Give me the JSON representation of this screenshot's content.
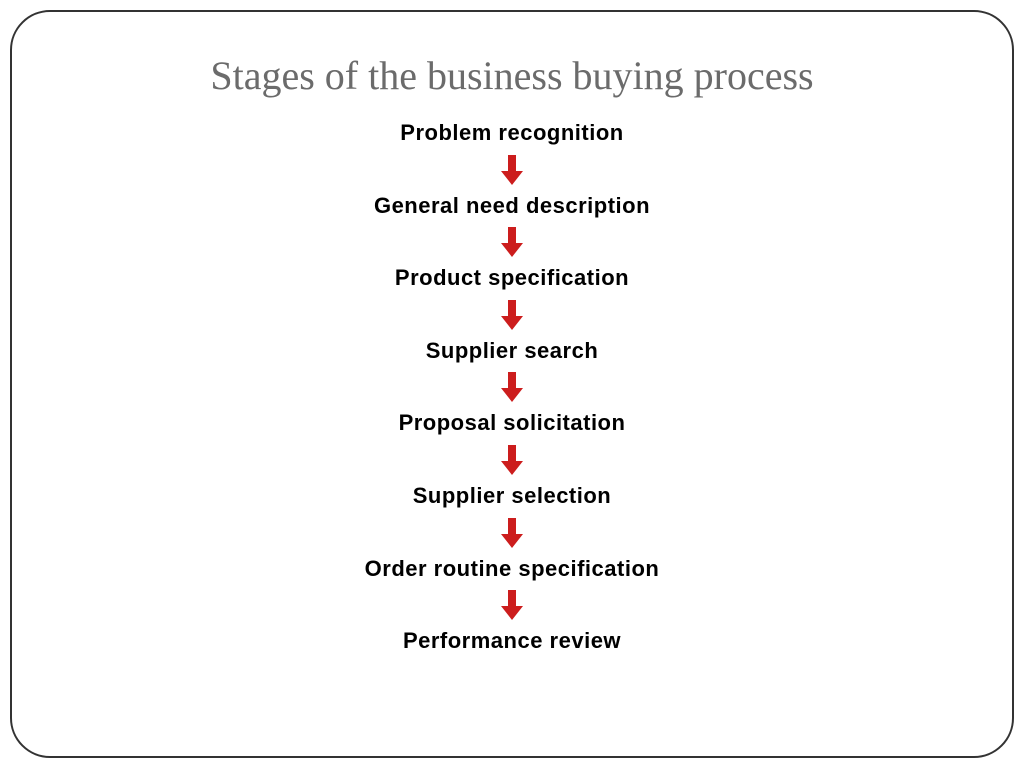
{
  "title": {
    "text": "Stages of the business buying process",
    "color": "#6b6b6b",
    "fontsize": 40
  },
  "flowchart": {
    "type": "flowchart",
    "direction": "vertical",
    "stage_text_color": "#000000",
    "stage_fontsize": 22,
    "stage_fontweight": "bold",
    "arrow_color": "#cc1d1d",
    "arrow_shaft_width": 8,
    "arrow_head_width": 22,
    "arrow_total_height": 30,
    "background_color": "#ffffff",
    "stages": [
      "Problem recognition",
      "General need description",
      "Product specification",
      "Supplier search",
      "Proposal solicitation",
      "Supplier selection",
      "Order routine specification",
      "Performance review"
    ]
  },
  "frame": {
    "border_color": "#333333",
    "border_width": 2,
    "border_radius": 40
  }
}
